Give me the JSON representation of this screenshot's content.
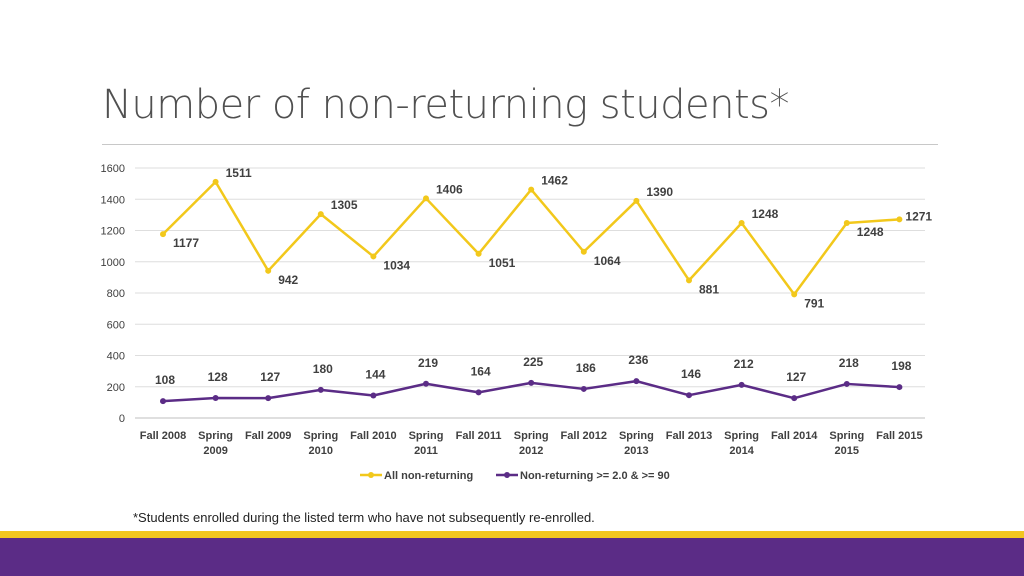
{
  "slide": {
    "title": "Number of non-returning students*",
    "footnote": "*Students enrolled during the listed term who have not subsequently re-enrolled."
  },
  "colors": {
    "series1": "#f2c81b",
    "series2": "#5b2c86",
    "gold_band": "#f2c61f",
    "purple_band": "#5b2c86"
  },
  "chart_data": {
    "type": "line",
    "categories": [
      [
        "Fall 2008"
      ],
      [
        "Spring",
        "2009"
      ],
      [
        "Fall 2009"
      ],
      [
        "Spring",
        "2010"
      ],
      [
        "Fall 2010"
      ],
      [
        "Spring",
        "2011"
      ],
      [
        "Fall 2011"
      ],
      [
        "Spring",
        "2012"
      ],
      [
        "Fall 2012"
      ],
      [
        "Spring",
        "2013"
      ],
      [
        "Fall 2013"
      ],
      [
        "Spring",
        "2014"
      ],
      [
        "Fall 2014"
      ],
      [
        "Spring",
        "2015"
      ],
      [
        "Fall 2015"
      ]
    ],
    "series": [
      {
        "name": "All non-returning",
        "color": "#f2c81b",
        "values": [
          1177,
          1511,
          942,
          1305,
          1034,
          1406,
          1051,
          1462,
          1064,
          1390,
          881,
          1248,
          791,
          1248,
          1271
        ]
      },
      {
        "name": "Non-returning >= 2.0 & >= 90",
        "color": "#5b2c86",
        "values": [
          108,
          128,
          127,
          180,
          144,
          219,
          164,
          225,
          186,
          236,
          146,
          212,
          127,
          218,
          198
        ]
      }
    ],
    "ylim": [
      0,
      1600
    ],
    "yticks": [
      0,
      200,
      400,
      600,
      800,
      1000,
      1200,
      1400,
      1600
    ],
    "grid": true,
    "legend": "bottom"
  }
}
